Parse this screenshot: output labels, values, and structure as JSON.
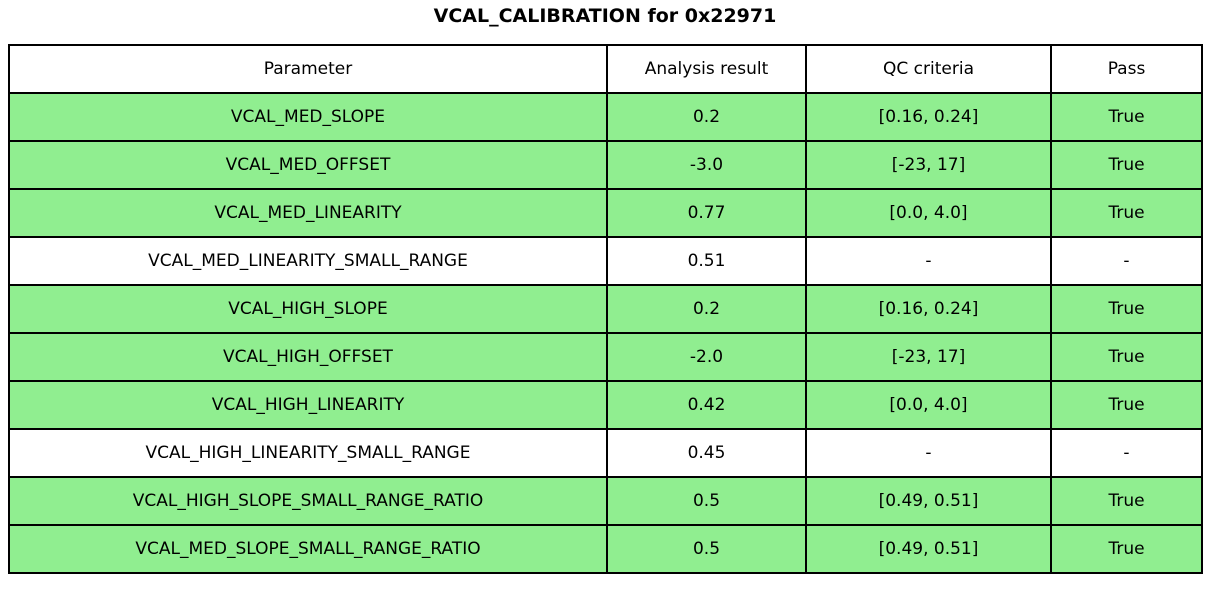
{
  "title": "VCAL_CALIBRATION for 0x22971",
  "colors": {
    "pass_row_green": "#90ee90",
    "no_criteria_row_white": "#ffffff",
    "border": "#000000",
    "text": "#000000"
  },
  "chart_data": {
    "type": "table",
    "title": "VCAL_CALIBRATION for 0x22971",
    "columns": [
      "Parameter",
      "Analysis result",
      "QC criteria",
      "Pass"
    ],
    "rows": [
      {
        "parameter": "VCAL_MED_SLOPE",
        "analysis_result": "0.2",
        "qc_criteria": "[0.16, 0.24]",
        "pass": "True",
        "row_class": "pass"
      },
      {
        "parameter": "VCAL_MED_OFFSET",
        "analysis_result": "-3.0",
        "qc_criteria": "[-23, 17]",
        "pass": "True",
        "row_class": "pass"
      },
      {
        "parameter": "VCAL_MED_LINEARITY",
        "analysis_result": "0.77",
        "qc_criteria": "[0.0, 4.0]",
        "pass": "True",
        "row_class": "pass"
      },
      {
        "parameter": "VCAL_MED_LINEARITY_SMALL_RANGE",
        "analysis_result": "0.51",
        "qc_criteria": "-",
        "pass": "-",
        "row_class": "plain"
      },
      {
        "parameter": "VCAL_HIGH_SLOPE",
        "analysis_result": "0.2",
        "qc_criteria": "[0.16, 0.24]",
        "pass": "True",
        "row_class": "pass"
      },
      {
        "parameter": "VCAL_HIGH_OFFSET",
        "analysis_result": "-2.0",
        "qc_criteria": "[-23, 17]",
        "pass": "True",
        "row_class": "pass"
      },
      {
        "parameter": "VCAL_HIGH_LINEARITY",
        "analysis_result": "0.42",
        "qc_criteria": "[0.0, 4.0]",
        "pass": "True",
        "row_class": "pass"
      },
      {
        "parameter": "VCAL_HIGH_LINEARITY_SMALL_RANGE",
        "analysis_result": "0.45",
        "qc_criteria": "-",
        "pass": "-",
        "row_class": "plain"
      },
      {
        "parameter": "VCAL_HIGH_SLOPE_SMALL_RANGE_RATIO",
        "analysis_result": "0.5",
        "qc_criteria": "[0.49, 0.51]",
        "pass": "True",
        "row_class": "pass"
      },
      {
        "parameter": "VCAL_MED_SLOPE_SMALL_RANGE_RATIO",
        "analysis_result": "0.5",
        "qc_criteria": "[0.49, 0.51]",
        "pass": "True",
        "row_class": "pass"
      }
    ]
  }
}
